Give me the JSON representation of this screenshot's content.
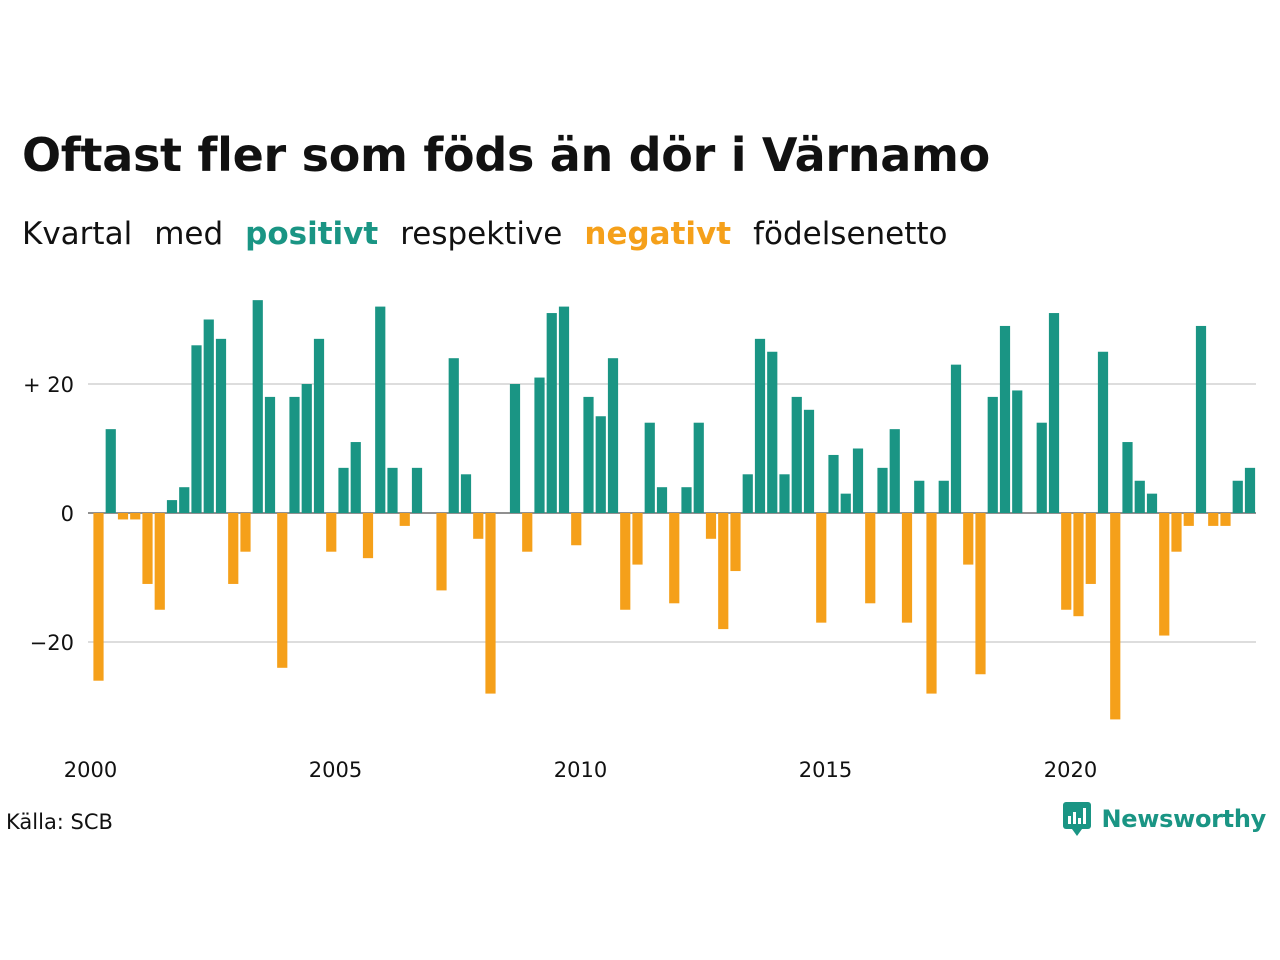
{
  "title": "Oftast fler som föds än dör i Värnamo",
  "subtitle": {
    "w1": "Kvartal",
    "w2": "med",
    "positive": "positivt",
    "w3": "respektive",
    "negative": "negativt",
    "w4": "födelsenetto"
  },
  "source": "Källa: SCB",
  "brand": "Newsworthy",
  "colors": {
    "positive": "#1a9584",
    "negative": "#f5a01a",
    "grid": "#dddddd",
    "text": "#111111"
  },
  "chart_data": {
    "type": "bar",
    "title": "Oftast fler som föds än dör i Värnamo",
    "subtitle": "Kvartal med positivt respektive negativt födelsenetto",
    "xlabel": "",
    "ylabel": "",
    "x_start": "2000 Q1",
    "xtick_labels": [
      "2000",
      "2005",
      "2010",
      "2015",
      "2020"
    ],
    "ytick_labels": [
      "−20",
      "0",
      "+ 20"
    ],
    "yticks": [
      -20,
      0,
      20
    ],
    "ylim": [
      -33,
      34
    ],
    "grid": true,
    "values": [
      -26,
      13,
      -1,
      -1,
      -11,
      -15,
      2,
      4,
      26,
      30,
      27,
      -11,
      -6,
      33,
      18,
      -24,
      18,
      20,
      27,
      -6,
      7,
      11,
      -7,
      32,
      7,
      -2,
      7,
      0,
      -12,
      24,
      6,
      -4,
      -28,
      0,
      20,
      -6,
      21,
      31,
      32,
      -5,
      18,
      15,
      24,
      -15,
      -8,
      14,
      4,
      -14,
      4,
      14,
      -4,
      -18,
      -9,
      6,
      27,
      25,
      6,
      18,
      16,
      -17,
      9,
      3,
      10,
      -14,
      7,
      13,
      -17,
      5,
      -28,
      5,
      23,
      -8,
      -25,
      18,
      29,
      19,
      0,
      14,
      31,
      -15,
      -16,
      -11,
      25,
      -32,
      11,
      5,
      3,
      -19,
      -6,
      -2,
      29,
      -2,
      -2,
      5,
      7
    ]
  }
}
